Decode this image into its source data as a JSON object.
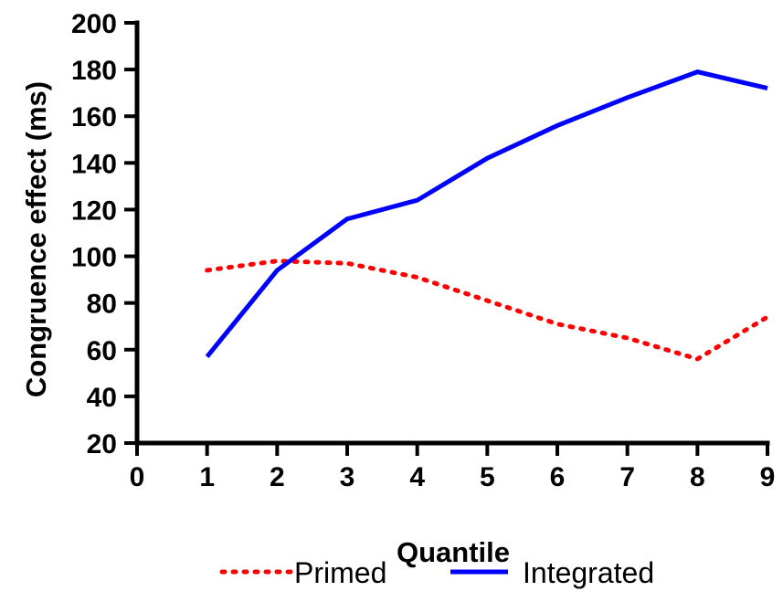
{
  "chart_data": {
    "type": "line",
    "xlabel": "Quantile",
    "ylabel": "Congruence effect (ms)",
    "xlim": [
      0,
      9
    ],
    "ylim": [
      20,
      200
    ],
    "xticks": [
      0,
      1,
      2,
      3,
      4,
      5,
      6,
      7,
      8,
      9
    ],
    "yticks": [
      20,
      40,
      60,
      80,
      100,
      120,
      140,
      160,
      180,
      200
    ],
    "grid": false,
    "legend_position": "bottom",
    "series": [
      {
        "name": "Primed",
        "style": "dotted",
        "color": "#ff0000",
        "x": [
          1,
          2,
          3,
          4,
          5,
          6,
          7,
          8,
          9
        ],
        "y": [
          94,
          98,
          97,
          91,
          81,
          71,
          65,
          56,
          74
        ]
      },
      {
        "name": "Integrated",
        "style": "solid",
        "color": "#0000ff",
        "x": [
          1,
          2,
          3,
          4,
          5,
          6,
          7,
          8,
          9
        ],
        "y": [
          57,
          94,
          116,
          124,
          142,
          156,
          168,
          179,
          172
        ]
      }
    ]
  }
}
